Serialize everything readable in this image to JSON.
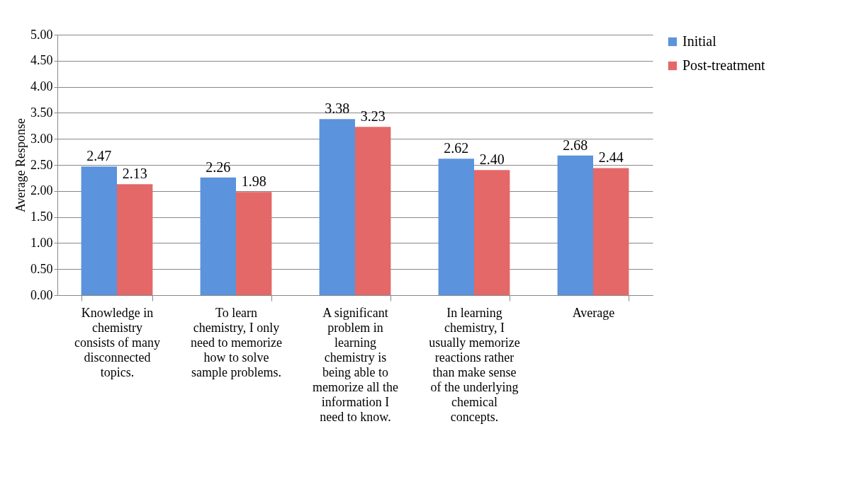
{
  "chart_data": {
    "type": "bar",
    "ylabel": "Average Response",
    "categories": [
      "Knowledge in chemistry consists of many disconnected topics.",
      "To learn chemistry, I only need to memorize how to solve sample problems.",
      "A significant problem in learning chemistry is being able to memorize all the information I need to know.",
      "In learning chemistry, I usually memorize reactions rather than make sense of the underlying chemical concepts.",
      "Average"
    ],
    "series": [
      {
        "name": "Initial",
        "color": "#5b93dc",
        "values": [
          2.47,
          2.26,
          3.38,
          2.62,
          2.68
        ],
        "value_labels": [
          "2.47",
          "2.26",
          "3.38",
          "2.62",
          "2.68"
        ]
      },
      {
        "name": "Post-treatment",
        "color": "#e46868",
        "values": [
          2.13,
          1.98,
          3.23,
          2.4,
          2.44
        ],
        "value_labels": [
          "2.13",
          "1.98",
          "3.23",
          "2.40",
          "2.44"
        ]
      }
    ],
    "ylim": [
      0,
      5
    ],
    "yticks": [
      {
        "value": 0,
        "label": "0.00"
      },
      {
        "value": 0.5,
        "label": "0.50"
      },
      {
        "value": 1,
        "label": "1.00"
      },
      {
        "value": 1.5,
        "label": "1.50"
      },
      {
        "value": 2,
        "label": "2.00"
      },
      {
        "value": 2.5,
        "label": "2.50"
      },
      {
        "value": 3,
        "label": "3.00"
      },
      {
        "value": 3.5,
        "label": "3.50"
      },
      {
        "value": 4,
        "label": "4.00"
      },
      {
        "value": 4.5,
        "label": "4.50"
      },
      {
        "value": 5,
        "label": "5.00"
      }
    ],
    "grid": "y",
    "legend": "right"
  }
}
